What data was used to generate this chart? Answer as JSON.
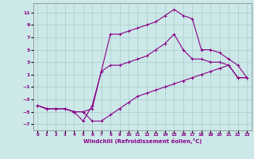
{
  "xlabel": "Windchill (Refroidissement éolien,°C)",
  "bg_color": "#cce8e8",
  "line_color": "#880088",
  "grid_color": "#aacccc",
  "xlim": [
    -0.5,
    23.5
  ],
  "ylim": [
    -8,
    12.5
  ],
  "xticks": [
    0,
    1,
    2,
    3,
    4,
    5,
    6,
    7,
    8,
    9,
    10,
    11,
    12,
    13,
    14,
    15,
    16,
    17,
    18,
    19,
    20,
    21,
    22,
    23
  ],
  "yticks": [
    -7,
    -5,
    -3,
    -1,
    1,
    3,
    5,
    7,
    9,
    11
  ],
  "line1_x": [
    0,
    1,
    2,
    3,
    4,
    5,
    6,
    7,
    8,
    9,
    10,
    11,
    12,
    13,
    14,
    15,
    16,
    17,
    18,
    19,
    20,
    21,
    22,
    23
  ],
  "line1_y": [
    -4.0,
    -4.5,
    -4.5,
    -4.5,
    -5.0,
    -5.0,
    -6.5,
    -6.5,
    -5.5,
    -4.5,
    -3.5,
    -2.5,
    -2.0,
    -1.5,
    -1.0,
    -0.5,
    0.0,
    0.5,
    1.0,
    1.5,
    2.0,
    2.5,
    0.5,
    0.5
  ],
  "line2_x": [
    0,
    1,
    2,
    3,
    4,
    5,
    6,
    7,
    8,
    9,
    10,
    11,
    12,
    13,
    14,
    15,
    16,
    17,
    18,
    19,
    20,
    21,
    22,
    23
  ],
  "line2_y": [
    -4.0,
    -4.5,
    -4.5,
    -4.5,
    -5.0,
    -5.0,
    -4.5,
    1.5,
    2.5,
    2.5,
    3.0,
    3.5,
    4.0,
    5.0,
    6.0,
    7.5,
    5.0,
    3.5,
    3.5,
    3.0,
    3.0,
    2.5,
    0.5,
    0.5
  ],
  "line3_x": [
    0,
    1,
    2,
    3,
    4,
    5,
    6,
    7,
    8,
    9,
    10,
    11,
    12,
    13,
    14,
    15,
    16,
    17,
    18,
    19,
    20,
    21,
    22,
    23
  ],
  "line3_y": [
    -4.0,
    -4.5,
    -4.5,
    -4.5,
    -5.0,
    -6.5,
    -4.0,
    1.5,
    7.5,
    7.5,
    8.0,
    8.5,
    9.0,
    9.5,
    10.5,
    11.5,
    10.5,
    10.0,
    5.0,
    5.0,
    4.5,
    3.5,
    2.5,
    0.5
  ],
  "marker": "+",
  "markersize": 3,
  "linewidth": 0.8
}
